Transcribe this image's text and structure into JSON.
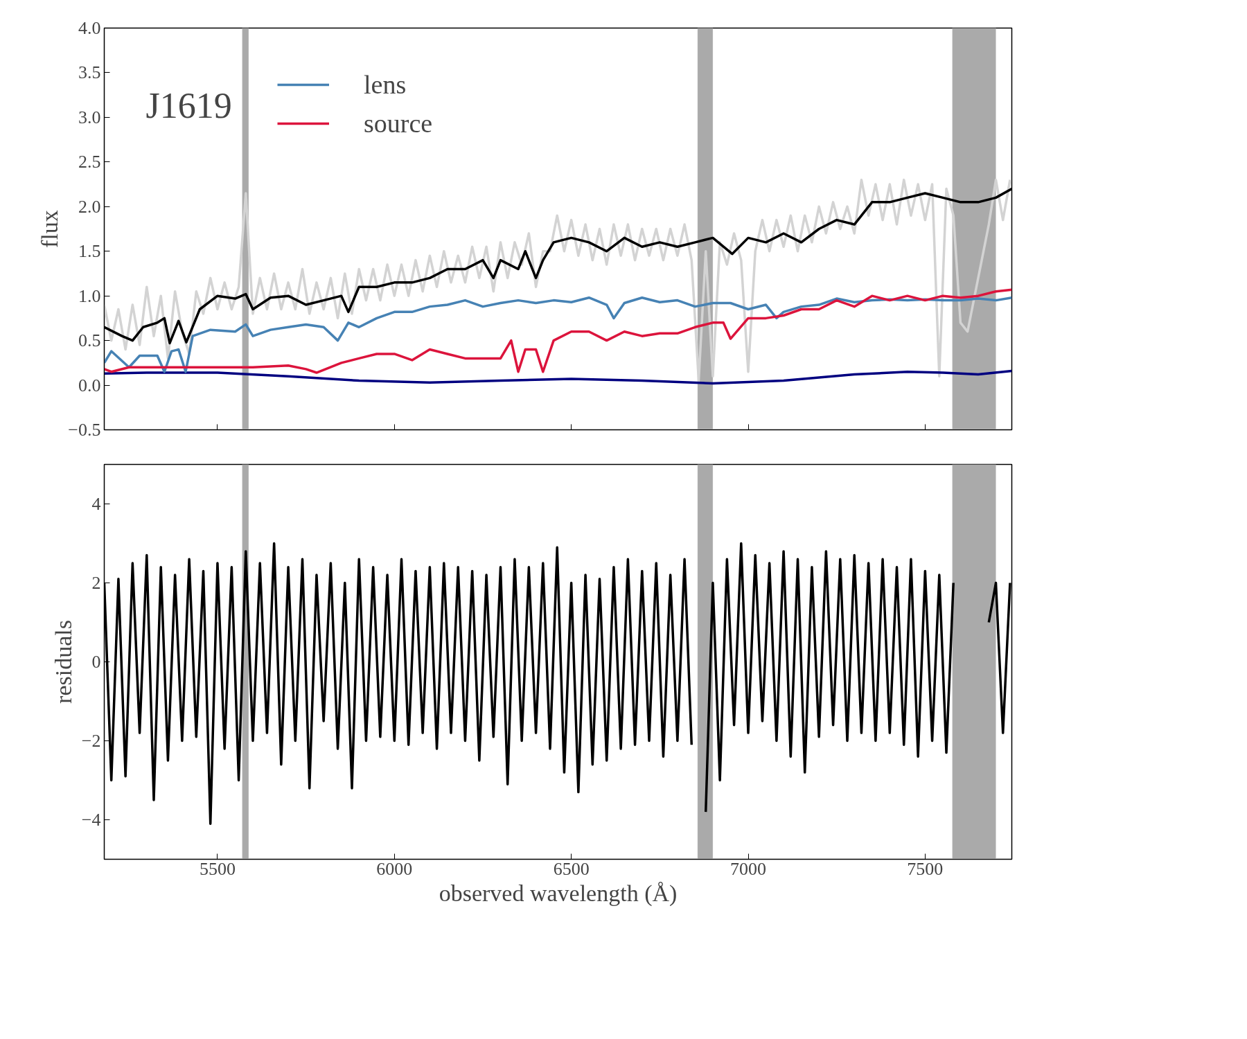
{
  "chart_data": [
    {
      "type": "line",
      "ylabel": "flux",
      "annotations": [
        "J1619"
      ],
      "legend": "top left",
      "tick_labels": "y",
      "grid": false,
      "xlim": [
        5180,
        7745
      ],
      "xticks": [
        5500,
        6000,
        6500,
        7000,
        7500
      ],
      "ylim": [
        -0.5,
        4.0
      ],
      "yticks": [
        {
          "value": -0.5,
          "label": "−0.5"
        },
        {
          "value": 0,
          "label": "0.0"
        },
        0.5,
        {
          "value": 1,
          "label": "1.0"
        },
        1.5,
        {
          "value": 2,
          "label": "2.0"
        },
        2.5,
        {
          "value": 3,
          "label": "3.0"
        },
        3.5,
        {
          "value": 4,
          "label": "4.0"
        }
      ],
      "bands": [
        {
          "axis": "x",
          "from": 5570,
          "to": 5588,
          "color": "#aaaaaa"
        },
        {
          "axis": "x",
          "from": 6857,
          "to": 6900,
          "color": "#aaaaaa"
        },
        {
          "axis": "x",
          "from": 7577,
          "to": 7700,
          "color": "#aaaaaa"
        }
      ],
      "series": [
        {
          "color": "#d3d3d3",
          "x": [
            5180,
            5200,
            5220,
            5240,
            5260,
            5280,
            5300,
            5320,
            5340,
            5360,
            5380,
            5400,
            5420,
            5440,
            5460,
            5480,
            5500,
            5520,
            5540,
            5560,
            5580,
            5600,
            5620,
            5640,
            5660,
            5680,
            5700,
            5720,
            5740,
            5760,
            5780,
            5800,
            5820,
            5840,
            5860,
            5880,
            5900,
            5920,
            5940,
            5960,
            5980,
            6000,
            6020,
            6040,
            6060,
            6080,
            6100,
            6120,
            6140,
            6160,
            6180,
            6200,
            6220,
            6240,
            6260,
            6280,
            6300,
            6320,
            6340,
            6360,
            6380,
            6400,
            6420,
            6440,
            6460,
            6480,
            6500,
            6520,
            6540,
            6560,
            6580,
            6600,
            6620,
            6640,
            6660,
            6680,
            6700,
            6720,
            6740,
            6760,
            6780,
            6800,
            6820,
            6840,
            6860,
            6880,
            6900,
            6920,
            6940,
            6960,
            6980,
            7000,
            7020,
            7040,
            7060,
            7080,
            7100,
            7120,
            7140,
            7160,
            7180,
            7200,
            7220,
            7240,
            7260,
            7280,
            7300,
            7320,
            7340,
            7360,
            7380,
            7400,
            7420,
            7440,
            7460,
            7480,
            7500,
            7520,
            7540,
            7560,
            7580,
            7600,
            7620,
            7640,
            7660,
            7680,
            7700,
            7720,
            7740
          ],
          "values": [
            0.9,
            0.5,
            0.85,
            0.4,
            0.9,
            0.45,
            1.1,
            0.55,
            1.0,
            0.3,
            1.05,
            0.6,
            0.35,
            1.05,
            0.8,
            1.2,
            0.85,
            1.15,
            0.85,
            1.1,
            2.15,
            0.8,
            1.2,
            0.85,
            1.25,
            0.85,
            1.15,
            0.85,
            1.3,
            0.8,
            1.15,
            0.85,
            1.2,
            0.75,
            1.25,
            0.8,
            1.3,
            0.95,
            1.3,
            0.95,
            1.35,
            1.0,
            1.35,
            1.0,
            1.4,
            1.05,
            1.45,
            1.1,
            1.5,
            1.15,
            1.45,
            1.15,
            1.55,
            1.2,
            1.55,
            1.05,
            1.6,
            1.2,
            1.6,
            1.35,
            1.7,
            1.1,
            1.5,
            1.5,
            1.9,
            1.5,
            1.85,
            1.45,
            1.8,
            1.4,
            1.75,
            1.35,
            1.8,
            1.45,
            1.8,
            1.4,
            1.75,
            1.45,
            1.75,
            1.4,
            1.75,
            1.45,
            1.8,
            1.4,
            0.05,
            1.5,
            0.1,
            1.6,
            1.35,
            1.7,
            1.4,
            0.15,
            1.5,
            1.85,
            1.5,
            1.85,
            1.55,
            1.9,
            1.5,
            1.9,
            1.6,
            2.0,
            1.7,
            2.05,
            1.75,
            2.0,
            1.7,
            2.3,
            1.9,
            2.25,
            1.85,
            2.25,
            1.8,
            2.3,
            1.9,
            2.25,
            1.85,
            2.25,
            0.1,
            2.2,
            1.9,
            0.7,
            0.6,
            1.0,
            1.4,
            1.8,
            2.3,
            1.85,
            2.3
          ]
        },
        {
          "color": "#000080",
          "x": [
            5180,
            5300,
            5500,
            5700,
            5900,
            6100,
            6300,
            6500,
            6700,
            6900,
            7100,
            7300,
            7450,
            7550,
            7650,
            7745
          ],
          "values": [
            0.13,
            0.14,
            0.14,
            0.1,
            0.05,
            0.03,
            0.05,
            0.07,
            0.05,
            0.02,
            0.05,
            0.12,
            0.15,
            0.14,
            0.12,
            0.16
          ]
        },
        {
          "name": "lens",
          "color": "#4682b4",
          "x": [
            5180,
            5200,
            5250,
            5280,
            5330,
            5350,
            5370,
            5390,
            5410,
            5430,
            5480,
            5550,
            5580,
            5600,
            5650,
            5700,
            5750,
            5800,
            5840,
            5870,
            5900,
            5950,
            6000,
            6050,
            6100,
            6150,
            6200,
            6250,
            6300,
            6350,
            6400,
            6450,
            6500,
            6550,
            6600,
            6620,
            6650,
            6700,
            6750,
            6800,
            6850,
            6900,
            6950,
            7000,
            7050,
            7080,
            7100,
            7150,
            7200,
            7250,
            7300,
            7350,
            7400,
            7450,
            7500,
            7550,
            7600,
            7650,
            7700,
            7745
          ],
          "values": [
            0.25,
            0.38,
            0.2,
            0.33,
            0.33,
            0.15,
            0.38,
            0.4,
            0.15,
            0.55,
            0.62,
            0.6,
            0.68,
            0.55,
            0.62,
            0.65,
            0.68,
            0.65,
            0.5,
            0.7,
            0.65,
            0.75,
            0.82,
            0.82,
            0.88,
            0.9,
            0.95,
            0.88,
            0.92,
            0.95,
            0.92,
            0.95,
            0.93,
            0.98,
            0.9,
            0.75,
            0.92,
            0.98,
            0.93,
            0.95,
            0.88,
            0.92,
            0.92,
            0.85,
            0.9,
            0.75,
            0.82,
            0.88,
            0.9,
            0.97,
            0.93,
            0.95,
            0.96,
            0.95,
            0.96,
            0.95,
            0.95,
            0.97,
            0.95,
            0.98
          ]
        },
        {
          "name": "source",
          "color": "#dc143c",
          "x": [
            5180,
            5200,
            5250,
            5300,
            5400,
            5500,
            5600,
            5700,
            5750,
            5780,
            5850,
            5900,
            5950,
            6000,
            6050,
            6100,
            6150,
            6200,
            6250,
            6300,
            6330,
            6350,
            6370,
            6400,
            6420,
            6450,
            6500,
            6550,
            6600,
            6650,
            6700,
            6750,
            6800,
            6850,
            6900,
            6930,
            6950,
            7000,
            7050,
            7100,
            7150,
            7200,
            7250,
            7300,
            7350,
            7400,
            7450,
            7500,
            7550,
            7600,
            7650,
            7700,
            7745
          ],
          "values": [
            0.18,
            0.15,
            0.2,
            0.2,
            0.2,
            0.2,
            0.2,
            0.22,
            0.18,
            0.14,
            0.25,
            0.3,
            0.35,
            0.35,
            0.28,
            0.4,
            0.35,
            0.3,
            0.3,
            0.3,
            0.5,
            0.15,
            0.4,
            0.4,
            0.15,
            0.5,
            0.6,
            0.6,
            0.5,
            0.6,
            0.55,
            0.58,
            0.58,
            0.65,
            0.7,
            0.7,
            0.52,
            0.75,
            0.75,
            0.78,
            0.85,
            0.85,
            0.95,
            0.88,
            1.0,
            0.95,
            1.0,
            0.95,
            1.0,
            0.98,
            1.0,
            1.05,
            1.07
          ]
        },
        {
          "color": "#000000",
          "x": [
            5180,
            5230,
            5260,
            5290,
            5330,
            5350,
            5365,
            5390,
            5412,
            5450,
            5500,
            5550,
            5580,
            5600,
            5650,
            5700,
            5750,
            5800,
            5850,
            5870,
            5900,
            5950,
            6000,
            6050,
            6100,
            6150,
            6200,
            6250,
            6280,
            6300,
            6350,
            6370,
            6400,
            6420,
            6450,
            6500,
            6550,
            6600,
            6650,
            6700,
            6750,
            6800,
            6850,
            6900,
            6955,
            7000,
            7050,
            7100,
            7150,
            7200,
            7250,
            7300,
            7350,
            7400,
            7450,
            7500,
            7550,
            7600,
            7650,
            7700,
            7745
          ],
          "values": [
            0.65,
            0.55,
            0.5,
            0.65,
            0.7,
            0.75,
            0.47,
            0.72,
            0.48,
            0.85,
            1.0,
            0.97,
            1.02,
            0.85,
            0.98,
            1.0,
            0.9,
            0.95,
            1.0,
            0.82,
            1.1,
            1.1,
            1.15,
            1.15,
            1.2,
            1.3,
            1.3,
            1.4,
            1.2,
            1.4,
            1.3,
            1.5,
            1.2,
            1.4,
            1.6,
            1.65,
            1.6,
            1.5,
            1.65,
            1.55,
            1.6,
            1.55,
            1.6,
            1.65,
            1.47,
            1.65,
            1.6,
            1.7,
            1.6,
            1.75,
            1.85,
            1.8,
            2.05,
            2.05,
            2.1,
            2.15,
            2.1,
            2.05,
            2.05,
            2.1,
            2.2
          ]
        }
      ]
    },
    {
      "type": "line",
      "xlabel": "observed wavelength (Å)",
      "ylabel": "residuals",
      "grid": false,
      "xlim": [
        5180,
        7745
      ],
      "xticks": [
        5500,
        6000,
        6500,
        7000,
        7500
      ],
      "ylim": [
        -5,
        5
      ],
      "yticks": [
        {
          "value": -4,
          "label": "−4"
        },
        {
          "value": -2,
          "label": "−2"
        },
        0,
        2,
        4
      ],
      "bands": [
        {
          "axis": "x",
          "from": 5570,
          "to": 5588,
          "color": "#aaaaaa"
        },
        {
          "axis": "x",
          "from": 6857,
          "to": 6900,
          "color": "#aaaaaa"
        },
        {
          "axis": "x",
          "from": 7577,
          "to": 7700,
          "color": "#aaaaaa"
        }
      ],
      "series": [
        {
          "color": "#000000",
          "x": [
            5180,
            5200,
            5220,
            5240,
            5260,
            5280,
            5300,
            5320,
            5340,
            5360,
            5380,
            5400,
            5420,
            5440,
            5460,
            5480,
            5500,
            5520,
            5540,
            5560,
            5580,
            5600,
            5620,
            5640,
            5660,
            5680,
            5700,
            5720,
            5740,
            5760,
            5780,
            5800,
            5820,
            5840,
            5860,
            5880,
            5900,
            5920,
            5940,
            5960,
            5980,
            6000,
            6020,
            6040,
            6060,
            6080,
            6100,
            6120,
            6140,
            6160,
            6180,
            6200,
            6220,
            6240,
            6260,
            6280,
            6300,
            6320,
            6340,
            6360,
            6380,
            6400,
            6420,
            6440,
            6460,
            6480,
            6500,
            6520,
            6540,
            6560,
            6580,
            6600,
            6620,
            6640,
            6660,
            6680,
            6700,
            6720,
            6740,
            6760,
            6780,
            6800,
            6820,
            6840,
            6860,
            6880,
            6900,
            6920,
            6940,
            6960,
            6980,
            7000,
            7020,
            7040,
            7060,
            7080,
            7100,
            7120,
            7140,
            7160,
            7180,
            7200,
            7220,
            7240,
            7260,
            7280,
            7300,
            7320,
            7340,
            7360,
            7380,
            7400,
            7420,
            7440,
            7460,
            7480,
            7500,
            7520,
            7540,
            7560,
            7580,
            7600,
            7620,
            7640,
            7660,
            7680,
            7700,
            7720,
            7740
          ],
          "values": [
            2.0,
            -3.0,
            2.1,
            -2.9,
            2.5,
            -1.8,
            2.7,
            -3.5,
            2.4,
            -2.5,
            2.2,
            -2.0,
            2.6,
            -1.9,
            2.3,
            -4.1,
            2.5,
            -2.2,
            2.4,
            -3.0,
            2.8,
            -2.0,
            2.5,
            -1.8,
            3.0,
            -2.6,
            2.4,
            -2.0,
            2.6,
            -3.2,
            2.2,
            -1.5,
            2.5,
            -2.2,
            2.0,
            -3.2,
            2.6,
            -2.0,
            2.4,
            -1.9,
            2.2,
            -2.0,
            2.6,
            -2.1,
            2.3,
            -1.8,
            2.4,
            -2.2,
            2.5,
            -1.8,
            2.4,
            -2.0,
            2.3,
            -2.5,
            2.2,
            -1.9,
            2.4,
            -3.1,
            2.6,
            -2.0,
            2.4,
            -1.8,
            2.5,
            -2.2,
            2.9,
            -2.8,
            2.0,
            -3.3,
            2.2,
            -2.6,
            2.1,
            -2.5,
            2.4,
            -2.2,
            2.6,
            -2.1,
            2.3,
            -2.0,
            2.5,
            -2.4,
            2.2,
            -2.0,
            2.6,
            -2.1,
            null,
            -3.8,
            2.0,
            -3.0,
            2.6,
            -1.6,
            3.0,
            -1.8,
            2.7,
            -1.5,
            2.5,
            -2.0,
            2.8,
            -2.4,
            2.6,
            -2.8,
            2.4,
            -1.9,
            2.8,
            -1.6,
            2.6,
            -2.0,
            2.7,
            -1.8,
            2.5,
            -2.0,
            2.6,
            -1.8,
            2.4,
            -2.1,
            2.6,
            -2.4,
            2.3,
            -2.0,
            2.2,
            -2.3,
            2.0,
            null,
            null,
            null,
            null,
            1.0,
            2.0,
            -1.8,
            2.0
          ]
        }
      ]
    }
  ]
}
